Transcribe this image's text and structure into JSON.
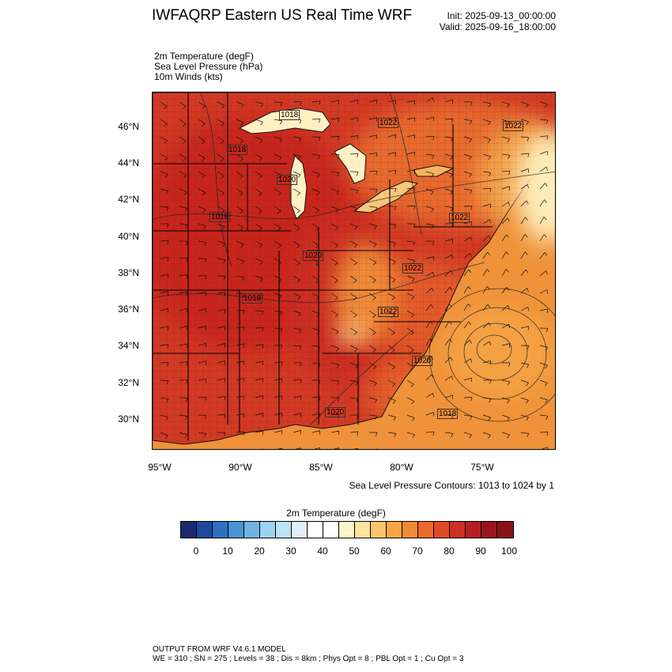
{
  "header": {
    "title": "IWFAQRP Eastern US Real Time WRF",
    "init": "Init: 2025-09-13_00:00:00",
    "valid": "Valid: 2025-09-16_18:00:00"
  },
  "fields": [
    "2m Temperature   (degF)",
    "Sea Level Pressure   (hPa)",
    "10m Winds   (kts)"
  ],
  "map": {
    "lat_labels": [
      "46°N",
      "44°N",
      "42°N",
      "40°N",
      "38°N",
      "36°N",
      "34°N",
      "32°N",
      "30°N"
    ],
    "lon_labels": [
      "95°W",
      "90°W",
      "85°W",
      "80°W",
      "75°W"
    ],
    "pressure_labels": [
      "1018",
      "1022",
      "1022",
      "1018",
      "1020",
      "1018",
      "1022",
      "1020",
      "1018",
      "1022",
      "1022",
      "1020",
      "1020",
      "1018"
    ],
    "colors": {
      "hot": "#c8281f",
      "warm": "#e05a2b",
      "orange": "#f0923a",
      "light": "#fbd28a",
      "cool": "#fff2c8"
    }
  },
  "contour_note": "Sea Level Pressure Contours: 1013 to 1024 by 1",
  "colorbar": {
    "title": "2m Temperature  (degF)",
    "ticks": [
      "0",
      "10",
      "20",
      "30",
      "40",
      "50",
      "60",
      "70",
      "80",
      "90",
      "100"
    ],
    "colors": [
      "#1a2a6c",
      "#1f4a9c",
      "#2f6fbf",
      "#4b94d1",
      "#6fb4e3",
      "#9fd3f2",
      "#bfe3f6",
      "#dff0fa",
      "#ffffff",
      "#ffffff",
      "#fff3cc",
      "#fde2a0",
      "#fcc66a",
      "#f9a544",
      "#f28a35",
      "#eb6b2c",
      "#df4a25",
      "#cf2e22",
      "#b71e22",
      "#99161c",
      "#8a1218"
    ]
  },
  "footer": {
    "line1": "OUTPUT FROM WRF V4.6.1 MODEL",
    "line2": "WE = 310 ; SN = 275 ; Levels = 38 ; Dis = 8km ; Phys Opt = 8 ; PBL Opt = 1 ; Cu Opt = 3"
  }
}
